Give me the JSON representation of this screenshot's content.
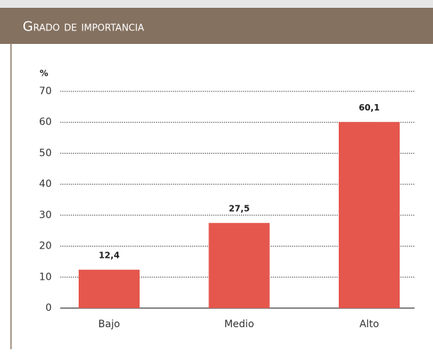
{
  "chart_data": {
    "type": "bar",
    "title": "Grado de importancia",
    "y_label": "%",
    "categories": [
      "Bajo",
      "Medio",
      "Alto"
    ],
    "values": [
      12.4,
      27.5,
      60.1
    ],
    "value_labels": [
      "12,4",
      "27,5",
      "60,1"
    ],
    "color": "#e5574d",
    "ylim": [
      0,
      70
    ],
    "yticks": [
      0,
      10,
      20,
      30,
      40,
      50,
      60,
      70
    ],
    "grid": true
  }
}
